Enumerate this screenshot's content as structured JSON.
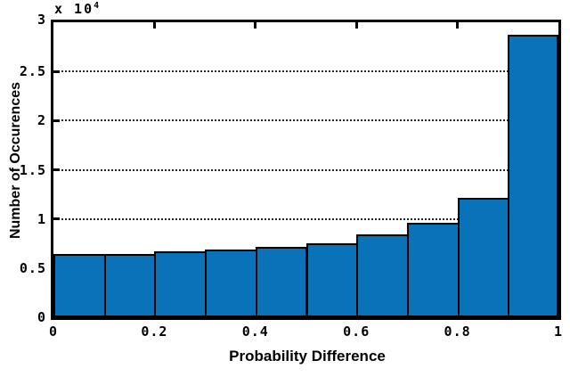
{
  "figure": {
    "xlabel": "Probability Difference",
    "ylabel": "Number of Occurences",
    "y_multiplier_base": "x 10",
    "y_multiplier_exponent": "4"
  },
  "chart_data": {
    "type": "bar",
    "title": "",
    "xlabel": "Probability Difference",
    "ylabel": "Number of Occurences",
    "y_multiplier": "x 10^4",
    "bin_edges": [
      0,
      0.1,
      0.2,
      0.3,
      0.4,
      0.5,
      0.6,
      0.7,
      0.8,
      0.9,
      1.0
    ],
    "values": [
      6450,
      6450,
      6700,
      6900,
      7150,
      7500,
      8400,
      9600,
      12150,
      28700
    ],
    "xlim": [
      0,
      1
    ],
    "ylim": [
      0,
      30000
    ],
    "xtick_values": [
      0,
      0.2,
      0.4,
      0.6,
      0.8,
      1
    ],
    "xtick_labels": [
      "0",
      "0.2",
      "0.4",
      "0.6",
      "0.8",
      "1"
    ],
    "ytick_values": [
      0,
      5000,
      10000,
      15000,
      20000,
      25000,
      30000
    ],
    "ytick_labels": [
      "0",
      "0.5",
      "1",
      "1.5",
      "2",
      "2.5",
      "3"
    ],
    "grid": "horizontal dotted gridlines only",
    "legend": "none",
    "bar_color": "#0A72B9",
    "bar_edge_color": "#000000",
    "axis_color": "#000000"
  }
}
